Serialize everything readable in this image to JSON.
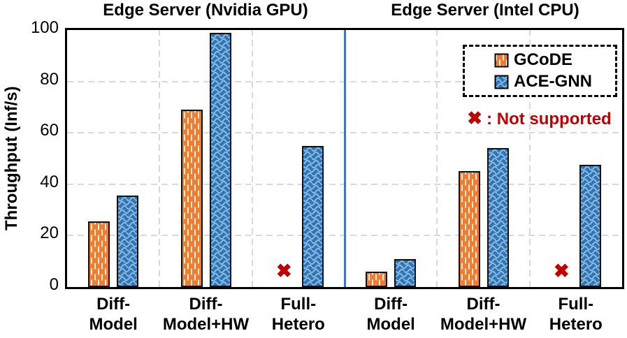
{
  "y_axis": {
    "label": "Throughput (Inf/s)"
  },
  "legend": {
    "items": [
      {
        "label": "GCoDE"
      },
      {
        "label": "ACE-GNN"
      }
    ]
  },
  "note": {
    "symbol": "✖",
    "text": ": Not supported"
  },
  "chart_data": {
    "type": "bar",
    "title": "",
    "ylabel": "Throughput (Inf/s)",
    "ylim": [
      0,
      100
    ],
    "yticks": [
      0,
      20,
      40,
      60,
      80,
      100
    ],
    "grid": "dashed horizontal and vertical category separators",
    "legend_position": "top-right of second panel, dashed box",
    "not_supported_symbol": "✖",
    "not_supported_note": "✖ : Not supported",
    "colors": {
      "GCoDE": "#ED7D31",
      "ACE-GNN": "#2E75B6",
      "divider": "#4472C4",
      "not_supported": "#C00000"
    },
    "panels": [
      {
        "title": "Edge Server (Nvidia GPU)",
        "categories": [
          [
            "Diff-",
            "Model"
          ],
          [
            "Diff-",
            "Model+HW"
          ],
          [
            "Full-",
            "Hetero"
          ]
        ],
        "series": [
          {
            "name": "GCoDE",
            "values": [
              25.5,
              69,
              null
            ]
          },
          {
            "name": "ACE-GNN",
            "values": [
              35.5,
              99,
              55
            ]
          }
        ]
      },
      {
        "title": "Edge Server (Intel CPU)",
        "categories": [
          [
            "Diff-",
            "Model"
          ],
          [
            "Diff-",
            "Model+HW"
          ],
          [
            "Full-",
            "Hetero"
          ]
        ],
        "series": [
          {
            "name": "GCoDE",
            "values": [
              6,
              45,
              null
            ]
          },
          {
            "name": "ACE-GNN",
            "values": [
              11,
              54,
              47.5
            ]
          }
        ]
      }
    ]
  }
}
